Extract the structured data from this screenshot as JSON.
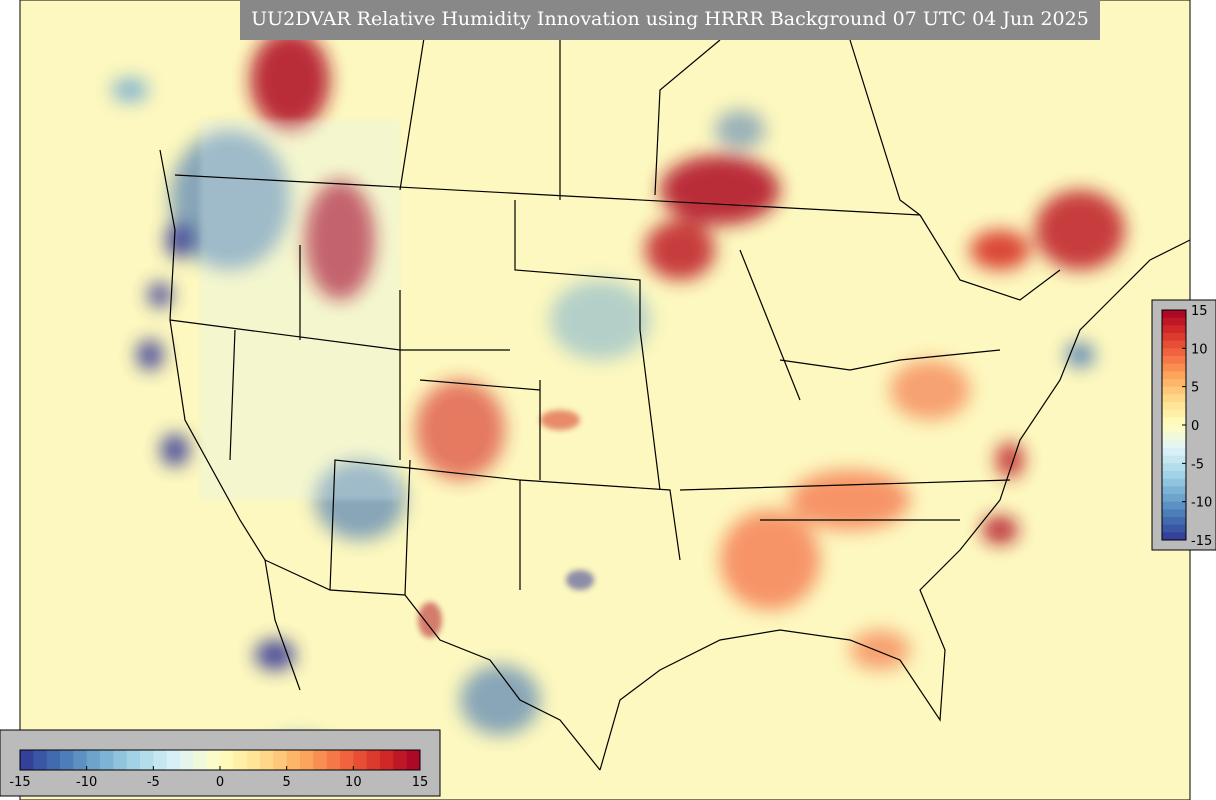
{
  "title": "UU2DVAR Relative Humidity Innovation using HRRR Background 07 UTC 04 Jun 2025",
  "colorbar_horizontal": {
    "lim": [
      -15,
      15
    ],
    "ticks": [
      -15,
      -10,
      -5,
      0,
      5,
      10,
      15
    ]
  },
  "colorbar_vertical": {
    "lim": [
      -15,
      15
    ],
    "ticks": [
      15,
      10,
      5,
      0,
      -5,
      -10,
      -15
    ]
  },
  "colormap": [
    "#313695",
    "#4575b4",
    "#74add1",
    "#abd9e9",
    "#e0f3f8",
    "#ffffbf",
    "#fee090",
    "#fdae61",
    "#f46d43",
    "#d73027",
    "#a50026"
  ]
}
